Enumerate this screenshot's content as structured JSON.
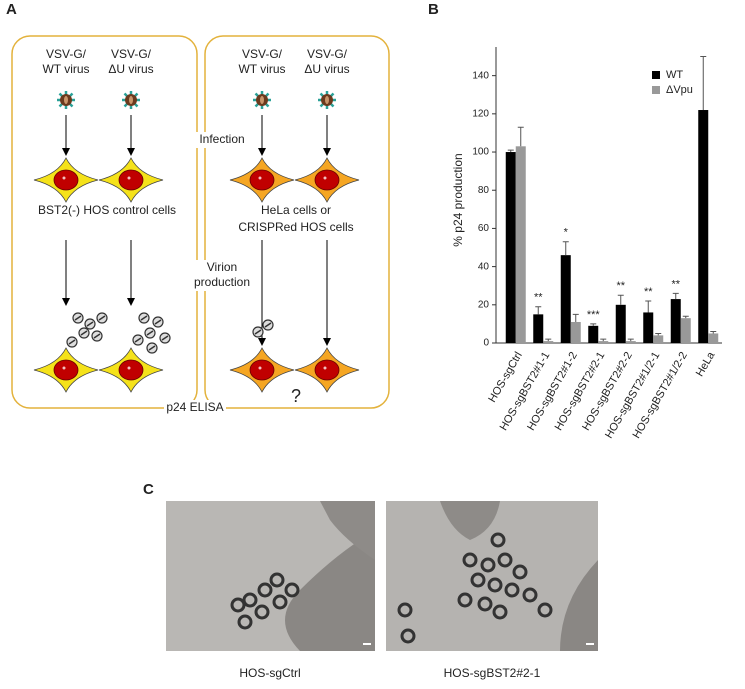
{
  "panel_a": {
    "label": "A",
    "left_columns": [
      [
        "VSV-G/",
        "WT virus"
      ],
      [
        "VSV-G/",
        "ΔU virus"
      ]
    ],
    "right_columns": [
      [
        "VSV-G/",
        "WT virus"
      ],
      [
        "VSV-G/",
        "ΔU virus"
      ]
    ],
    "infection": "Infection",
    "left_cells": "BST2(-) HOS control cells",
    "right_cells": [
      "HeLa cells or",
      "CRISPRed HOS cells"
    ],
    "virion": [
      "Virion",
      "production"
    ],
    "elisa": "p24 ELISA",
    "question": "?"
  },
  "chart_data": {
    "type": "bar",
    "panel_label": "B",
    "y_label": "% p24 production",
    "categories": [
      "HOS-sgCtrl",
      "HOS-sgBST2#1-1",
      "HOS-sgBST2#1-2",
      "HOS-sgBST2#2-1",
      "HOS-sgBST2#2-2",
      "HOS-sgBST2#1/2-1",
      "HOS-sgBST2#1/2-2",
      "HeLa"
    ],
    "series": [
      {
        "name": "WT",
        "color": "#000000",
        "values": [
          100,
          15,
          46,
          9,
          20,
          16,
          23,
          122
        ],
        "errors": [
          1,
          4,
          7,
          1,
          5,
          6,
          3,
          28
        ]
      },
      {
        "name": "ΔVpu",
        "color": "#999999",
        "values": [
          103,
          1,
          11,
          1,
          1,
          4,
          13,
          5
        ],
        "errors": [
          10,
          1,
          4,
          1,
          1,
          1,
          1,
          1
        ]
      }
    ],
    "significance": [
      null,
      "**",
      "*",
      "***",
      "**",
      "**",
      "**",
      null
    ],
    "ylim": [
      0,
      155
    ],
    "yticks": [
      0,
      20,
      40,
      60,
      80,
      100,
      120,
      140
    ],
    "legend": "top-right"
  },
  "panel_c": {
    "label": "C",
    "captions": [
      "HOS-sgCtrl",
      "HOS-sgBST2#2-1"
    ]
  }
}
